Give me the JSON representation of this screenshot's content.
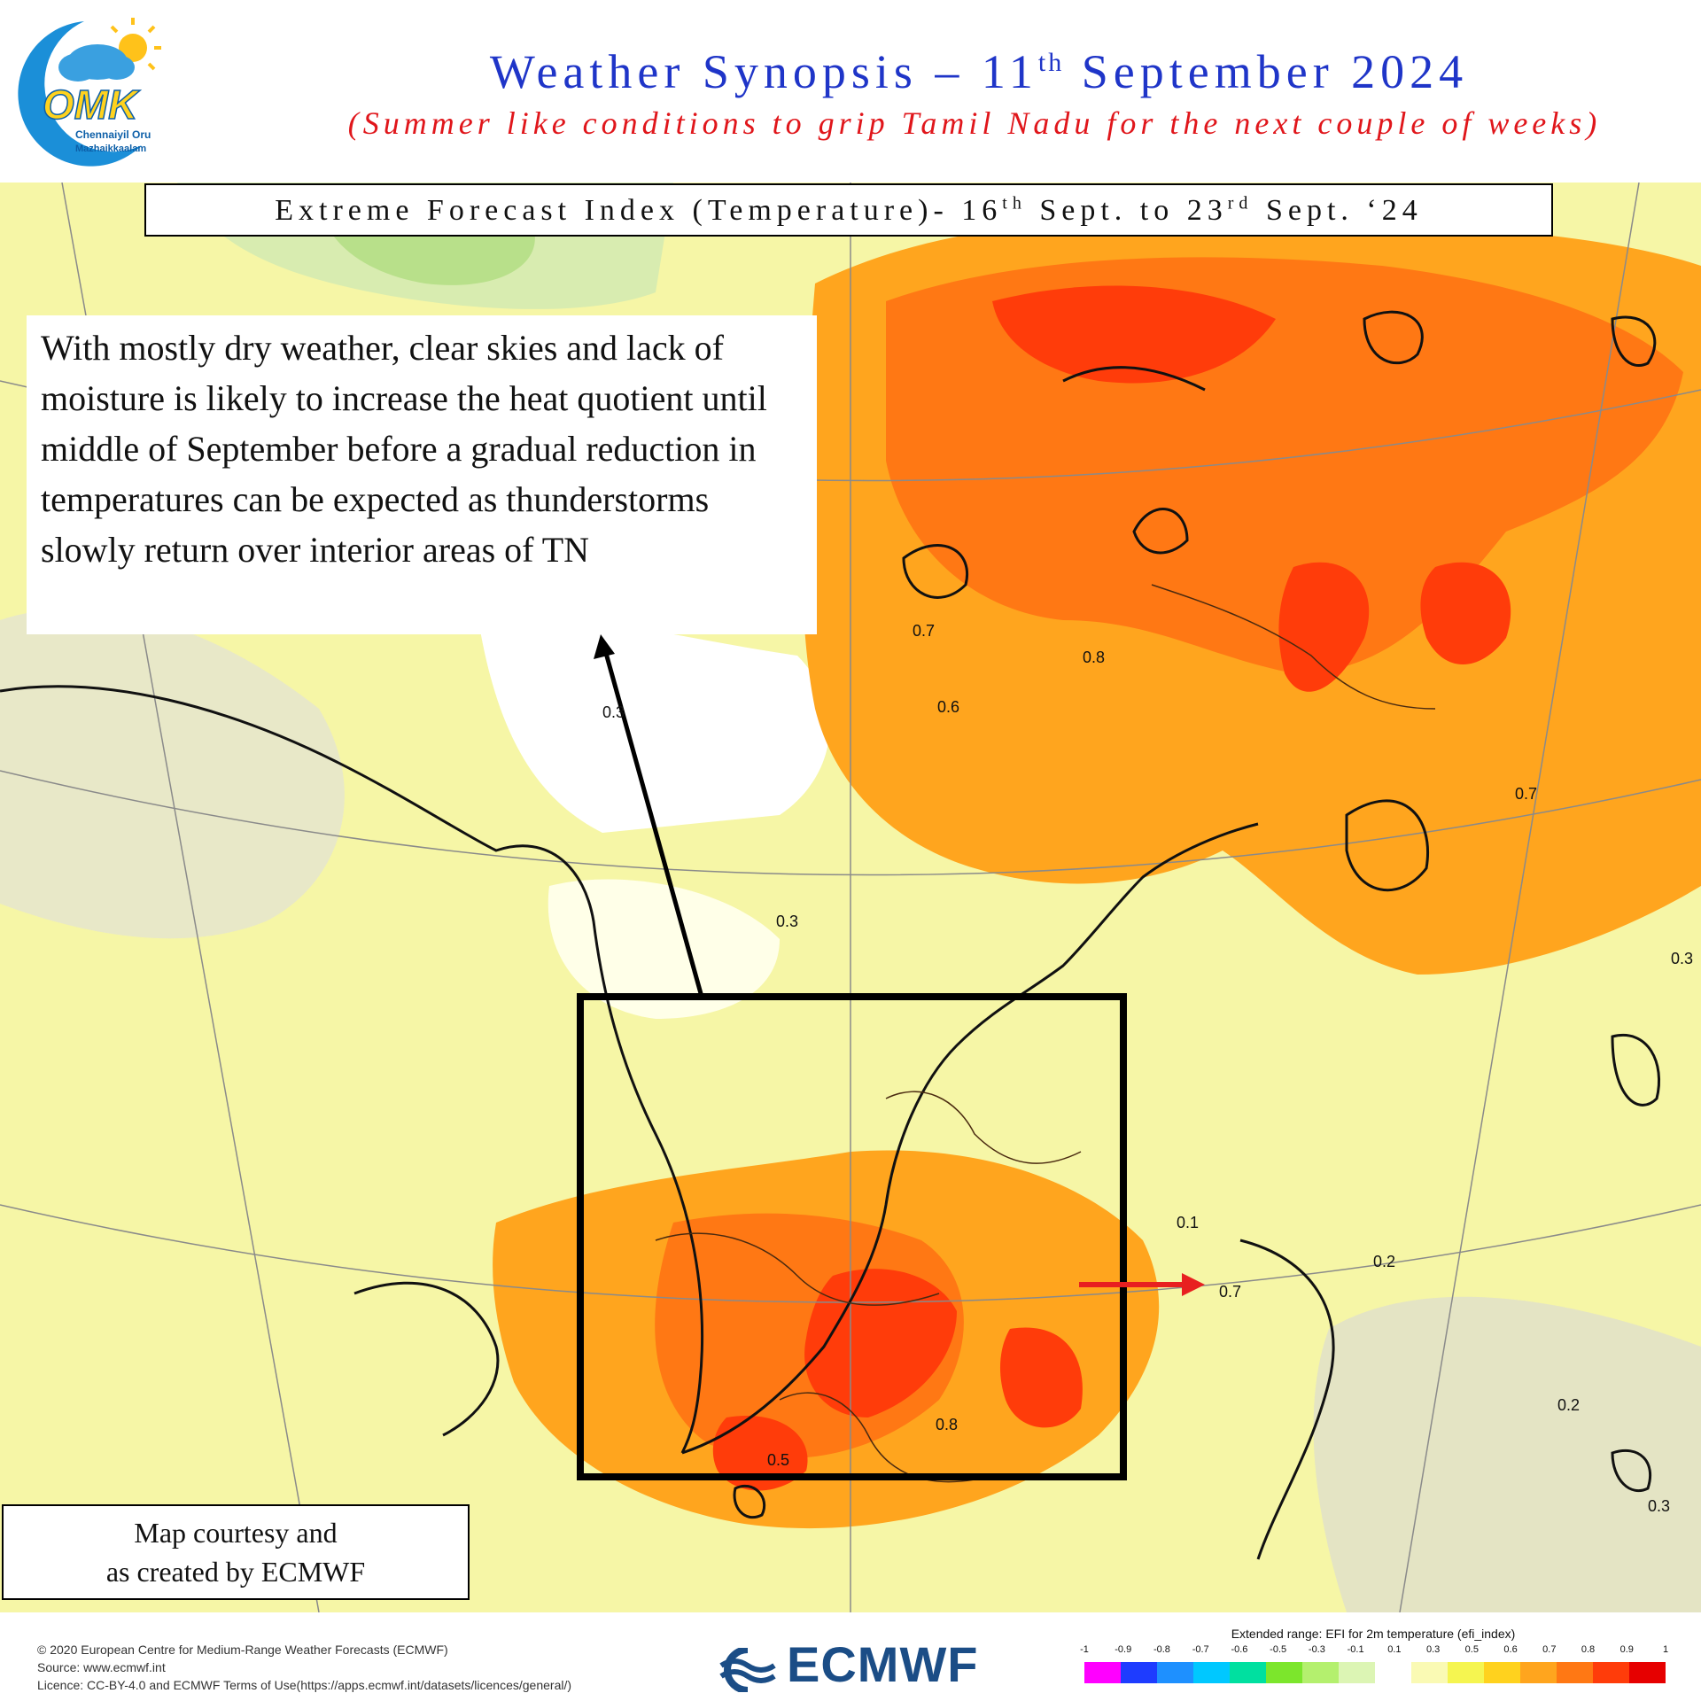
{
  "header": {
    "title_main": "Weather Synopsis – 11",
    "title_sup": "th",
    "title_rest": " September 2024",
    "subtitle": "(Summer like conditions to grip Tamil Nadu for the next couple of weeks)",
    "logo": {
      "letters": "OMK",
      "line1": "Chennaiyil Oru",
      "line2": "Mazhaikkaalam"
    }
  },
  "map": {
    "title_part1": "Extreme Forecast Index (Temperature)- 16",
    "title_sup1": "th",
    "title_part2": " Sept. to 23",
    "title_sup2": "rd",
    "title_part3": " Sept. ‘24",
    "description": "With mostly dry weather, clear skies and lack of moisture is likely to increase the heat quotient until middle of September before a gradual reduction in temperatures can be expected as thunderstorms slowly return over interior areas of TN",
    "courtesy_line1": "Map courtesy and",
    "courtesy_line2": "as created by ECMWF",
    "contour_labels": [
      "0.7",
      "0.8",
      "0.6",
      "0.3",
      "0.7",
      "0.3",
      "0.5",
      "0.8",
      "0.2",
      "0.3",
      "0.1",
      "0.7",
      "0.3",
      "0.2"
    ]
  },
  "footer": {
    "copyright_line1": "© 2020 European Centre for Medium-Range Weather Forecasts (ECMWF)",
    "copyright_line2": "Source: www.ecmwf.int",
    "copyright_line3": "Licence: CC-BY-4.0 and ECMWF Terms of Use(https://apps.ecmwf.int/datasets/licences/general/)",
    "ecmwf_name": "ECMWF"
  },
  "legend": {
    "title": "Extended range: EFI for 2m temperature (efi_index)",
    "ticks": [
      "-1",
      "-0.9",
      "-0.8",
      "-0.7",
      "-0.6",
      "-0.5",
      "-0.3",
      "-0.1",
      "0.1",
      "0.3",
      "0.5",
      "0.6",
      "0.7",
      "0.8",
      "0.9",
      "1"
    ],
    "colors": [
      "#ff00ff",
      "#1e3cff",
      "#1e90ff",
      "#00c8ff",
      "#00e0a0",
      "#7ce62c",
      "#b4f06e",
      "#dcf5b4",
      "#ffffff",
      "#fafab4",
      "#f5f550",
      "#ffd21e",
      "#ffa51e",
      "#ff7814",
      "#ff3c0a",
      "#e60000"
    ]
  },
  "colors": {
    "title": "#1f35c8",
    "subtitle": "#e0161b",
    "ecmwf_blue": "#1b4d86",
    "arrow_red": "#e82020"
  }
}
